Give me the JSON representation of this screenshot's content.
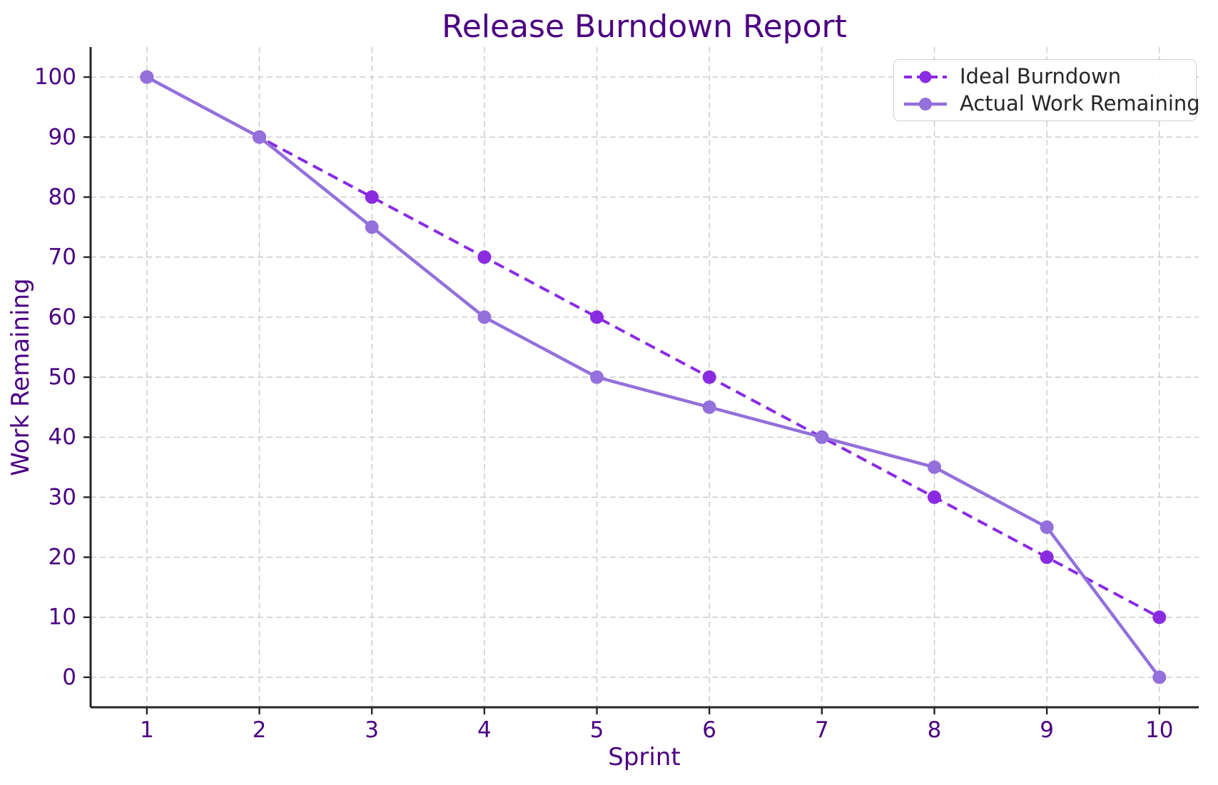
{
  "chart_data": {
    "type": "line",
    "title": "Release Burndown Report",
    "xlabel": "Sprint",
    "ylabel": "Work Remaining",
    "x": [
      1,
      2,
      3,
      4,
      5,
      6,
      7,
      8,
      9,
      10
    ],
    "xticks": [
      1,
      2,
      3,
      4,
      5,
      6,
      7,
      8,
      9,
      10
    ],
    "yticks": [
      0,
      10,
      20,
      30,
      40,
      50,
      60,
      70,
      80,
      90,
      100
    ],
    "xlim": [
      0.5,
      10.35
    ],
    "ylim": [
      -5,
      105
    ],
    "grid": true,
    "grid_style": "dashed",
    "legend_position": "upper-right",
    "series": [
      {
        "name": "Ideal Burndown",
        "style": "dashed",
        "marker": "circle",
        "color": "#8A2BE2",
        "values": [
          100,
          90,
          80,
          70,
          60,
          50,
          40,
          30,
          20,
          10
        ]
      },
      {
        "name": "Actual Work Remaining",
        "style": "solid",
        "marker": "circle",
        "color": "#9370DB",
        "values": [
          100,
          90,
          75,
          60,
          50,
          45,
          40,
          35,
          25,
          0
        ]
      }
    ],
    "colors": {
      "title": "#4B0082",
      "axis_labels": "#4B0082",
      "tick_labels": "#4B0082",
      "legend_text": "#262626",
      "spines": "#262626",
      "grid": "#c9c9c9",
      "background": "#ffffff"
    }
  }
}
